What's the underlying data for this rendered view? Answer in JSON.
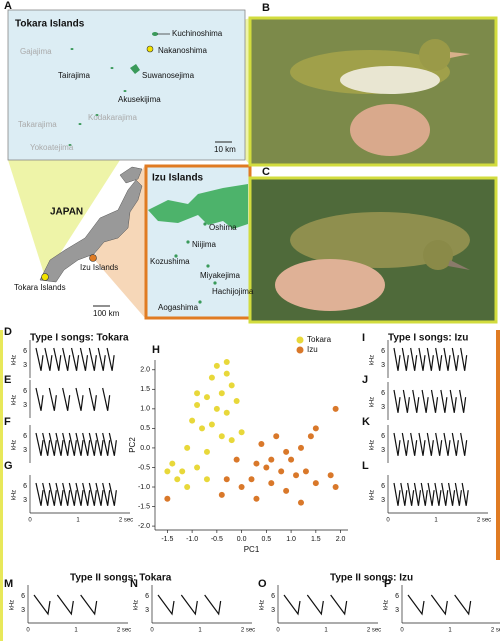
{
  "panels": [
    "A",
    "B",
    "C",
    "D",
    "E",
    "F",
    "G",
    "H",
    "I",
    "J",
    "K",
    "L",
    "M",
    "N",
    "O",
    "P"
  ],
  "map_tokara": {
    "title": "Tokara Islands",
    "islands": [
      "Kuchinoshima",
      "Nakanoshima",
      "Gajajima",
      "Tairajima",
      "Suwanosejima",
      "Akusekijima",
      "Kodakarajima",
      "Takarajima",
      "Yokoatejima"
    ],
    "scale": "10 km"
  },
  "map_japan": {
    "country": "JAPAN",
    "izu": "Izu Islands",
    "tokara": "Tokara Islands",
    "scale": "100 km"
  },
  "map_izu": {
    "title": "Izu Islands",
    "islands": [
      "Oshima",
      "Niijima",
      "Kozushima",
      "Miyakejima",
      "Hachijojima",
      "Aogashima"
    ]
  },
  "songs": {
    "type1_tokara": "Type I songs: Tokara",
    "type1_izu": "Type I songs: Izu",
    "type2_tokara": "Type II songs: Tokara",
    "type2_izu": "Type II songs: Izu"
  },
  "spectrogram_axis": {
    "y_label": "kHz",
    "y_ticks": [
      "6",
      "3"
    ],
    "x_ticks": [
      "0",
      "1",
      "2 sec"
    ]
  },
  "chart_data": {
    "type": "scatter",
    "xlabel": "PC1",
    "ylabel": "PC2",
    "xlim": [
      -1.75,
      2.15
    ],
    "ylim": [
      -2.1,
      2.25
    ],
    "xticks": [
      {
        "value": -1.5,
        "label": "-1.5"
      },
      {
        "value": -1,
        "label": "-1.0"
      },
      {
        "value": -0.5,
        "label": "-0.5"
      },
      {
        "value": 0,
        "label": "0.0"
      },
      {
        "value": 0.5,
        "label": "0.5"
      },
      {
        "value": 1,
        "label": "1.0"
      },
      {
        "value": 1.5,
        "label": "1.5"
      },
      {
        "value": 2,
        "label": "2.0"
      }
    ],
    "yticks": [
      {
        "value": -2,
        "label": "-2.0"
      },
      {
        "value": -1.5,
        "label": "-1.5"
      },
      {
        "value": -1,
        "label": "-1.0"
      },
      {
        "value": -0.5,
        "label": "-0.5"
      },
      {
        "value": 0,
        "label": "0.0"
      },
      {
        "value": 0.5,
        "label": "0.5"
      },
      {
        "value": 1,
        "label": "1.0"
      },
      {
        "value": 1.5,
        "label": "1.5"
      },
      {
        "value": 2,
        "label": "2.0"
      }
    ],
    "series": [
      {
        "name": "Tokara",
        "color": "#e8d83a",
        "x": [
          -0.5,
          -0.3,
          -0.6,
          -0.2,
          -0.4,
          -0.7,
          -0.1,
          -0.9,
          -0.5,
          -0.3,
          -1.0,
          -0.6,
          -0.8,
          -0.4,
          -0.2,
          -1.1,
          -0.7,
          -1.5,
          -1.4,
          -1.2,
          -1.3,
          -0.9,
          -0.7,
          -1.1,
          0.0,
          -0.9,
          -0.3
        ],
        "y": [
          2.1,
          2.2,
          1.8,
          1.6,
          1.4,
          1.3,
          1.2,
          1.1,
          1.0,
          0.9,
          0.7,
          0.6,
          0.5,
          0.3,
          0.2,
          0.0,
          -0.1,
          -0.6,
          -0.4,
          -0.6,
          -0.8,
          -0.5,
          -0.8,
          -1.0,
          0.4,
          1.4,
          1.9
        ]
      },
      {
        "name": "Izu",
        "color": "#d9782a",
        "x": [
          1.9,
          1.5,
          1.4,
          1.2,
          0.9,
          0.6,
          0.3,
          -0.1,
          0.5,
          0.8,
          1.1,
          0.2,
          -0.3,
          0.6,
          1.3,
          1.8,
          1.9,
          0.9,
          -0.4,
          0.3,
          1.2,
          -1.5,
          0.0,
          0.4,
          0.7,
          1.0,
          1.5
        ],
        "y": [
          1.0,
          0.5,
          0.3,
          0.0,
          -0.1,
          -0.3,
          -0.4,
          -0.3,
          -0.5,
          -0.6,
          -0.7,
          -0.8,
          -0.8,
          -0.9,
          -0.6,
          -0.7,
          -1.0,
          -1.1,
          -1.2,
          -1.3,
          -1.4,
          -1.3,
          -1.0,
          0.1,
          0.3,
          -0.3,
          -0.9
        ]
      }
    ]
  }
}
